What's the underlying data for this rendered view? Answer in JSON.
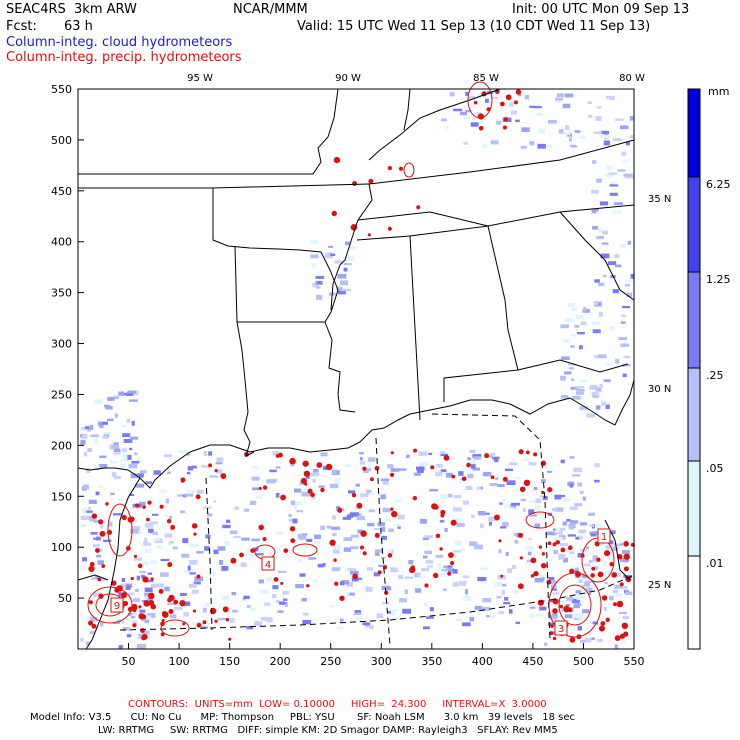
{
  "header": {
    "model": "SEAC4RS  3km ARW",
    "org": "NCAR/MMM",
    "init": "Init: 00 UTC Mon 09 Sep 13",
    "fcst_label": "Fcst:",
    "fcst_value": "63 h",
    "valid": "Valid: 15 UTC Wed 11 Sep 13 (10 CDT Wed 11 Sep 13)",
    "line_blue": "Column-integ. cloud hydrometeors",
    "line_red": "Column-integ. precip. hydrometeors"
  },
  "map": {
    "lon_labels": [
      "95 W",
      "90 W",
      "85 W",
      "80 W"
    ],
    "lat_labels": [
      "35 N",
      "30 N",
      "25 N"
    ],
    "x_ticks": [
      "50",
      "100",
      "150",
      "200",
      "250",
      "300",
      "350",
      "400",
      "450",
      "500",
      "550"
    ],
    "y_ticks": [
      "550",
      "500",
      "450",
      "400",
      "350",
      "300",
      "250",
      "200",
      "150",
      "100",
      "50"
    ],
    "contour_boxes": [
      "4",
      "9",
      "3",
      "1"
    ]
  },
  "colorbar": {
    "unit": "mm",
    "levels": [
      "6.25",
      "1.25",
      ".25",
      ".05",
      ".01"
    ],
    "colors": [
      "#0000dd",
      "#4343ee",
      "#7a7af2",
      "#b4c0f7",
      "#dcf6fb",
      "#ffffff"
    ]
  },
  "footer": {
    "contours": "CONTOURS:  UNITS=mm  LOW= 0.10000     HIGH=  24.300     INTERVAL=X  3.0000",
    "line1": "Model Info: V3.5      CU: No Cu      MP: Thompson     PBL: YSU       SF: Noah LSM      3.0 km   39 levels   18 sec",
    "line2": "LW: RRTMG     SW: RRTMG   DIFF: simple KM: 2D Smagor DAMP: Rayleigh3   SFLAY: Rev MM5"
  }
}
